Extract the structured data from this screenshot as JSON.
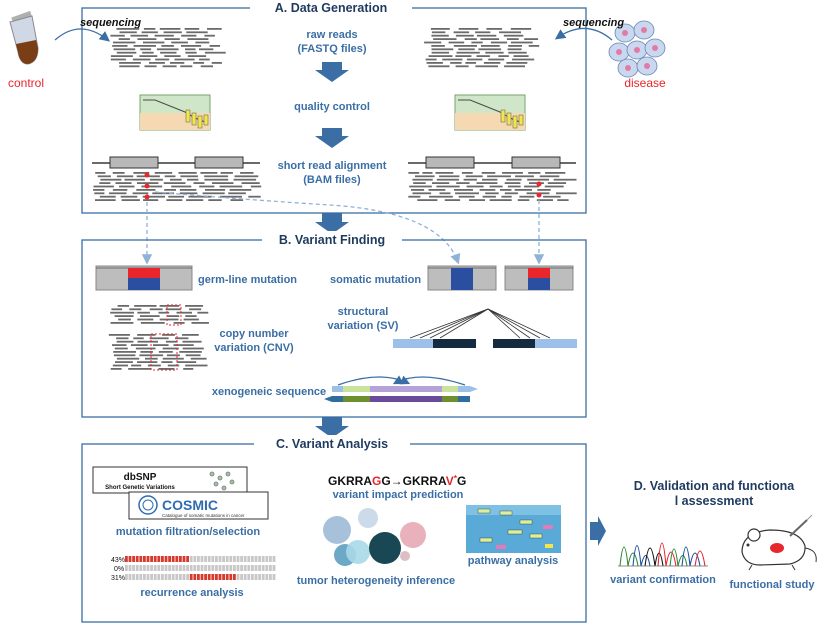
{
  "panels": {
    "a_title": "A. Data Generation",
    "b_title": "B. Variant Finding",
    "c_title": "C. Variant Analysis",
    "d_title_line1": "D. Validation and functiona",
    "d_title_line2": "l assessment"
  },
  "sample": {
    "control": "control",
    "disease": "disease",
    "sequencing_left": "sequencing",
    "sequencing_right": "sequencing"
  },
  "a_steps": {
    "raw_reads_1": "raw reads",
    "raw_reads_2": "(FASTQ files)",
    "quality_control": "quality control",
    "alignment_1": "short read alignment",
    "alignment_2": "(BAM files)"
  },
  "b_labels": {
    "germline": "germ-line mutation",
    "somatic": "somatic mutation",
    "structural_1": "structural",
    "structural_2": "variation (SV)",
    "cnv_1": "copy number",
    "cnv_2": "variation (CNV)",
    "xenogeneic": "xenogeneic sequence"
  },
  "c_labels": {
    "dbsnp_title": "dbSNP",
    "dbsnp_sub": "Short Genetic Variations",
    "cosmic_title": "COSMIC",
    "cosmic_sub": "Catalogue of somatic mutations in cancer",
    "mutation_filtration": "mutation filtration/selection",
    "seq_before": "GKRRA",
    "seq_red1": "G",
    "seq_mid": "G→GKRRA",
    "seq_red2": "V",
    "seq_star": "*",
    "seq_end": "G",
    "impact": "variant impact prediction",
    "pathway": "pathway analysis",
    "heterogeneity": "tumor heterogeneity inference",
    "recurrence": "recurrence analysis",
    "pct_1": "43%",
    "pct_2": "0%",
    "pct_3": "31%"
  },
  "d_labels": {
    "confirmation": "variant confirmation",
    "functional": "functional study"
  },
  "colors": {
    "panel_border": "#3a6ea5",
    "arrow": "#3a6ea5",
    "label": "#3a6ea5",
    "mutation_red": "#e8262b",
    "mutation_blue": "#2b4fa0"
  },
  "recurrence_frequencies": [
    0.43,
    0.0,
    0.31
  ]
}
